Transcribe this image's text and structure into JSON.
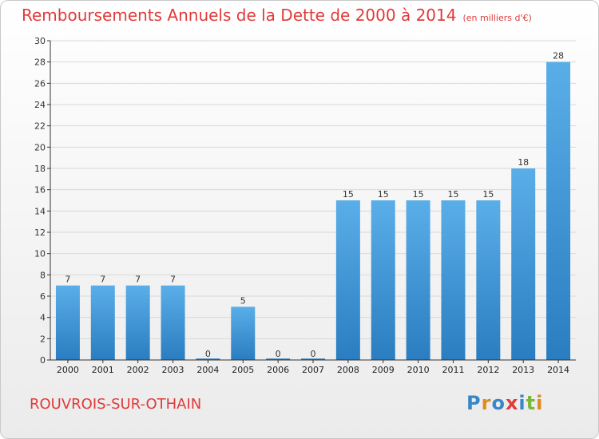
{
  "chart_data": {
    "type": "bar",
    "title": "Remboursements Annuels de la Dette de 2000 à 2014",
    "subtitle": "(en milliers d'€)",
    "categories": [
      "2000",
      "2001",
      "2002",
      "2003",
      "2004",
      "2005",
      "2006",
      "2007",
      "2008",
      "2009",
      "2010",
      "2011",
      "2012",
      "2013",
      "2014"
    ],
    "values": [
      7,
      7,
      7,
      7,
      0,
      5,
      0,
      0,
      15,
      15,
      15,
      15,
      15,
      18,
      28
    ],
    "ylim": [
      0,
      30
    ],
    "yticks": [
      0,
      2,
      4,
      6,
      8,
      10,
      12,
      14,
      16,
      18,
      20,
      22,
      24,
      26,
      28,
      30
    ],
    "xlabel": "",
    "ylabel": "",
    "bar_color_top": "#5aaee8",
    "bar_color_bottom": "#2a7dc0"
  },
  "footer": {
    "commune": "ROUVROIS-SUR-OTHAIN",
    "logo_text": "Proxiti",
    "logo_colors": [
      "#3a87c8",
      "#e08a1e",
      "#3a87c8",
      "#e03a3a",
      "#3a87c8",
      "#7ab83a",
      "#e08a1e"
    ]
  },
  "colors": {
    "title": "#e03a3a",
    "gridline": "#d8d8d8",
    "axis": "#333333"
  }
}
